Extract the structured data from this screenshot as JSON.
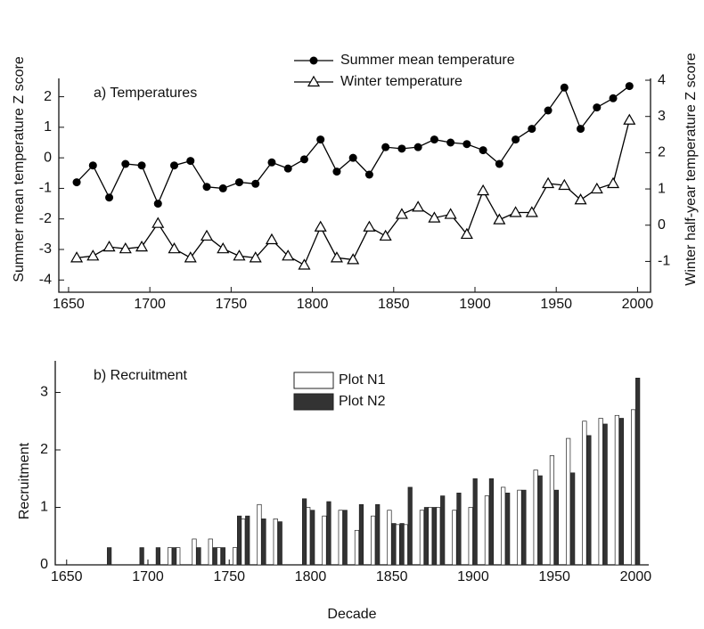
{
  "chart_data": [
    {
      "type": "line",
      "title": "a) Temperatures",
      "y_label": "Summer mean  temperature  Z score",
      "y2_label": "Winter half-year temperature  Z score",
      "x": [
        1655,
        1665,
        1675,
        1685,
        1695,
        1705,
        1715,
        1725,
        1735,
        1745,
        1755,
        1765,
        1775,
        1785,
        1795,
        1805,
        1815,
        1825,
        1835,
        1845,
        1855,
        1865,
        1875,
        1885,
        1895,
        1905,
        1915,
        1925,
        1935,
        1945,
        1955,
        1965,
        1975,
        1985,
        1995
      ],
      "xlim": [
        1644,
        2008
      ],
      "xticks": [
        1650,
        1700,
        1750,
        1800,
        1850,
        1900,
        1950,
        2000
      ],
      "ylim": [
        -4.4,
        2.6
      ],
      "yticks": [
        -4,
        -3,
        -2,
        -1,
        0,
        1,
        2
      ],
      "y2lim": [
        -1.85,
        4.05
      ],
      "y2ticks": [
        -1,
        0,
        1,
        2,
        3,
        4
      ],
      "series": [
        {
          "name": "Summer mean temperature",
          "color": "#000000",
          "marker": "circle",
          "values": [
            -0.8,
            -0.25,
            -1.3,
            -0.2,
            -0.25,
            -1.5,
            -0.25,
            -0.1,
            -0.95,
            -1.0,
            -0.8,
            -0.85,
            -0.15,
            -0.35,
            -0.05,
            0.6,
            -0.45,
            0.0,
            -0.55,
            0.35,
            0.3,
            0.35,
            0.6,
            0.5,
            0.45,
            0.25,
            -0.2,
            0.6,
            0.95,
            1.55,
            2.3,
            0.95,
            1.65,
            1.95,
            2.35
          ]
        },
        {
          "name": "Winter temperature",
          "color": "#000000",
          "marker": "triangle",
          "axis": "y2",
          "values": [
            -0.9,
            -0.85,
            -0.6,
            -0.65,
            -0.6,
            0.05,
            -0.65,
            -0.9,
            -0.3,
            -0.65,
            -0.85,
            -0.9,
            -0.4,
            -0.85,
            -1.1,
            -0.05,
            -0.9,
            -0.95,
            -0.05,
            -0.3,
            0.3,
            0.5,
            0.2,
            0.3,
            -0.25,
            0.95,
            0.15,
            0.35,
            0.35,
            1.15,
            1.1,
            0.7,
            1.0,
            1.15,
            2.9
          ]
        }
      ]
    },
    {
      "type": "bar",
      "title": "b) Recruitment",
      "y_label": "Recruitment",
      "x_label": "Decade",
      "x": [
        1675,
        1695,
        1705,
        1715,
        1720,
        1730,
        1740,
        1745,
        1755,
        1760,
        1770,
        1780,
        1795,
        1800,
        1810,
        1820,
        1830,
        1840,
        1850,
        1855,
        1860,
        1870,
        1875,
        1880,
        1890,
        1900,
        1910,
        1920,
        1930,
        1940,
        1950,
        1960,
        1970,
        1980,
        1990,
        2000
      ],
      "xlim": [
        1643,
        2008
      ],
      "xticks": [
        1650,
        1700,
        1750,
        1800,
        1850,
        1900,
        1950,
        2000
      ],
      "ylim": [
        0,
        3.55
      ],
      "yticks": [
        0,
        1,
        2,
        3
      ],
      "series": [
        {
          "name": "Plot N1",
          "color": "#ffffff",
          "values": [
            0,
            0,
            0,
            0.3,
            0.3,
            0.45,
            0.45,
            0.3,
            0.3,
            0.8,
            1.05,
            0.8,
            0,
            1.0,
            0.85,
            0.95,
            0.6,
            0.85,
            0.95,
            0.7,
            0.7,
            0.95,
            1.0,
            1.0,
            0.95,
            1.0,
            1.2,
            1.35,
            1.3,
            1.65,
            1.9,
            2.2,
            2.5,
            2.55,
            2.6,
            2.7
          ]
        },
        {
          "name": "Plot N2",
          "color": "#333333",
          "values": [
            0.3,
            0.3,
            0.3,
            0.3,
            0,
            0.3,
            0.3,
            0.3,
            0.85,
            0.85,
            0.8,
            0.75,
            1.15,
            0.95,
            1.1,
            0.95,
            1.05,
            1.05,
            0.72,
            0.72,
            1.35,
            1.0,
            1.0,
            1.2,
            1.25,
            1.5,
            1.5,
            1.25,
            1.3,
            1.55,
            1.3,
            1.6,
            2.25,
            2.45,
            2.55,
            3.25
          ]
        }
      ]
    }
  ]
}
